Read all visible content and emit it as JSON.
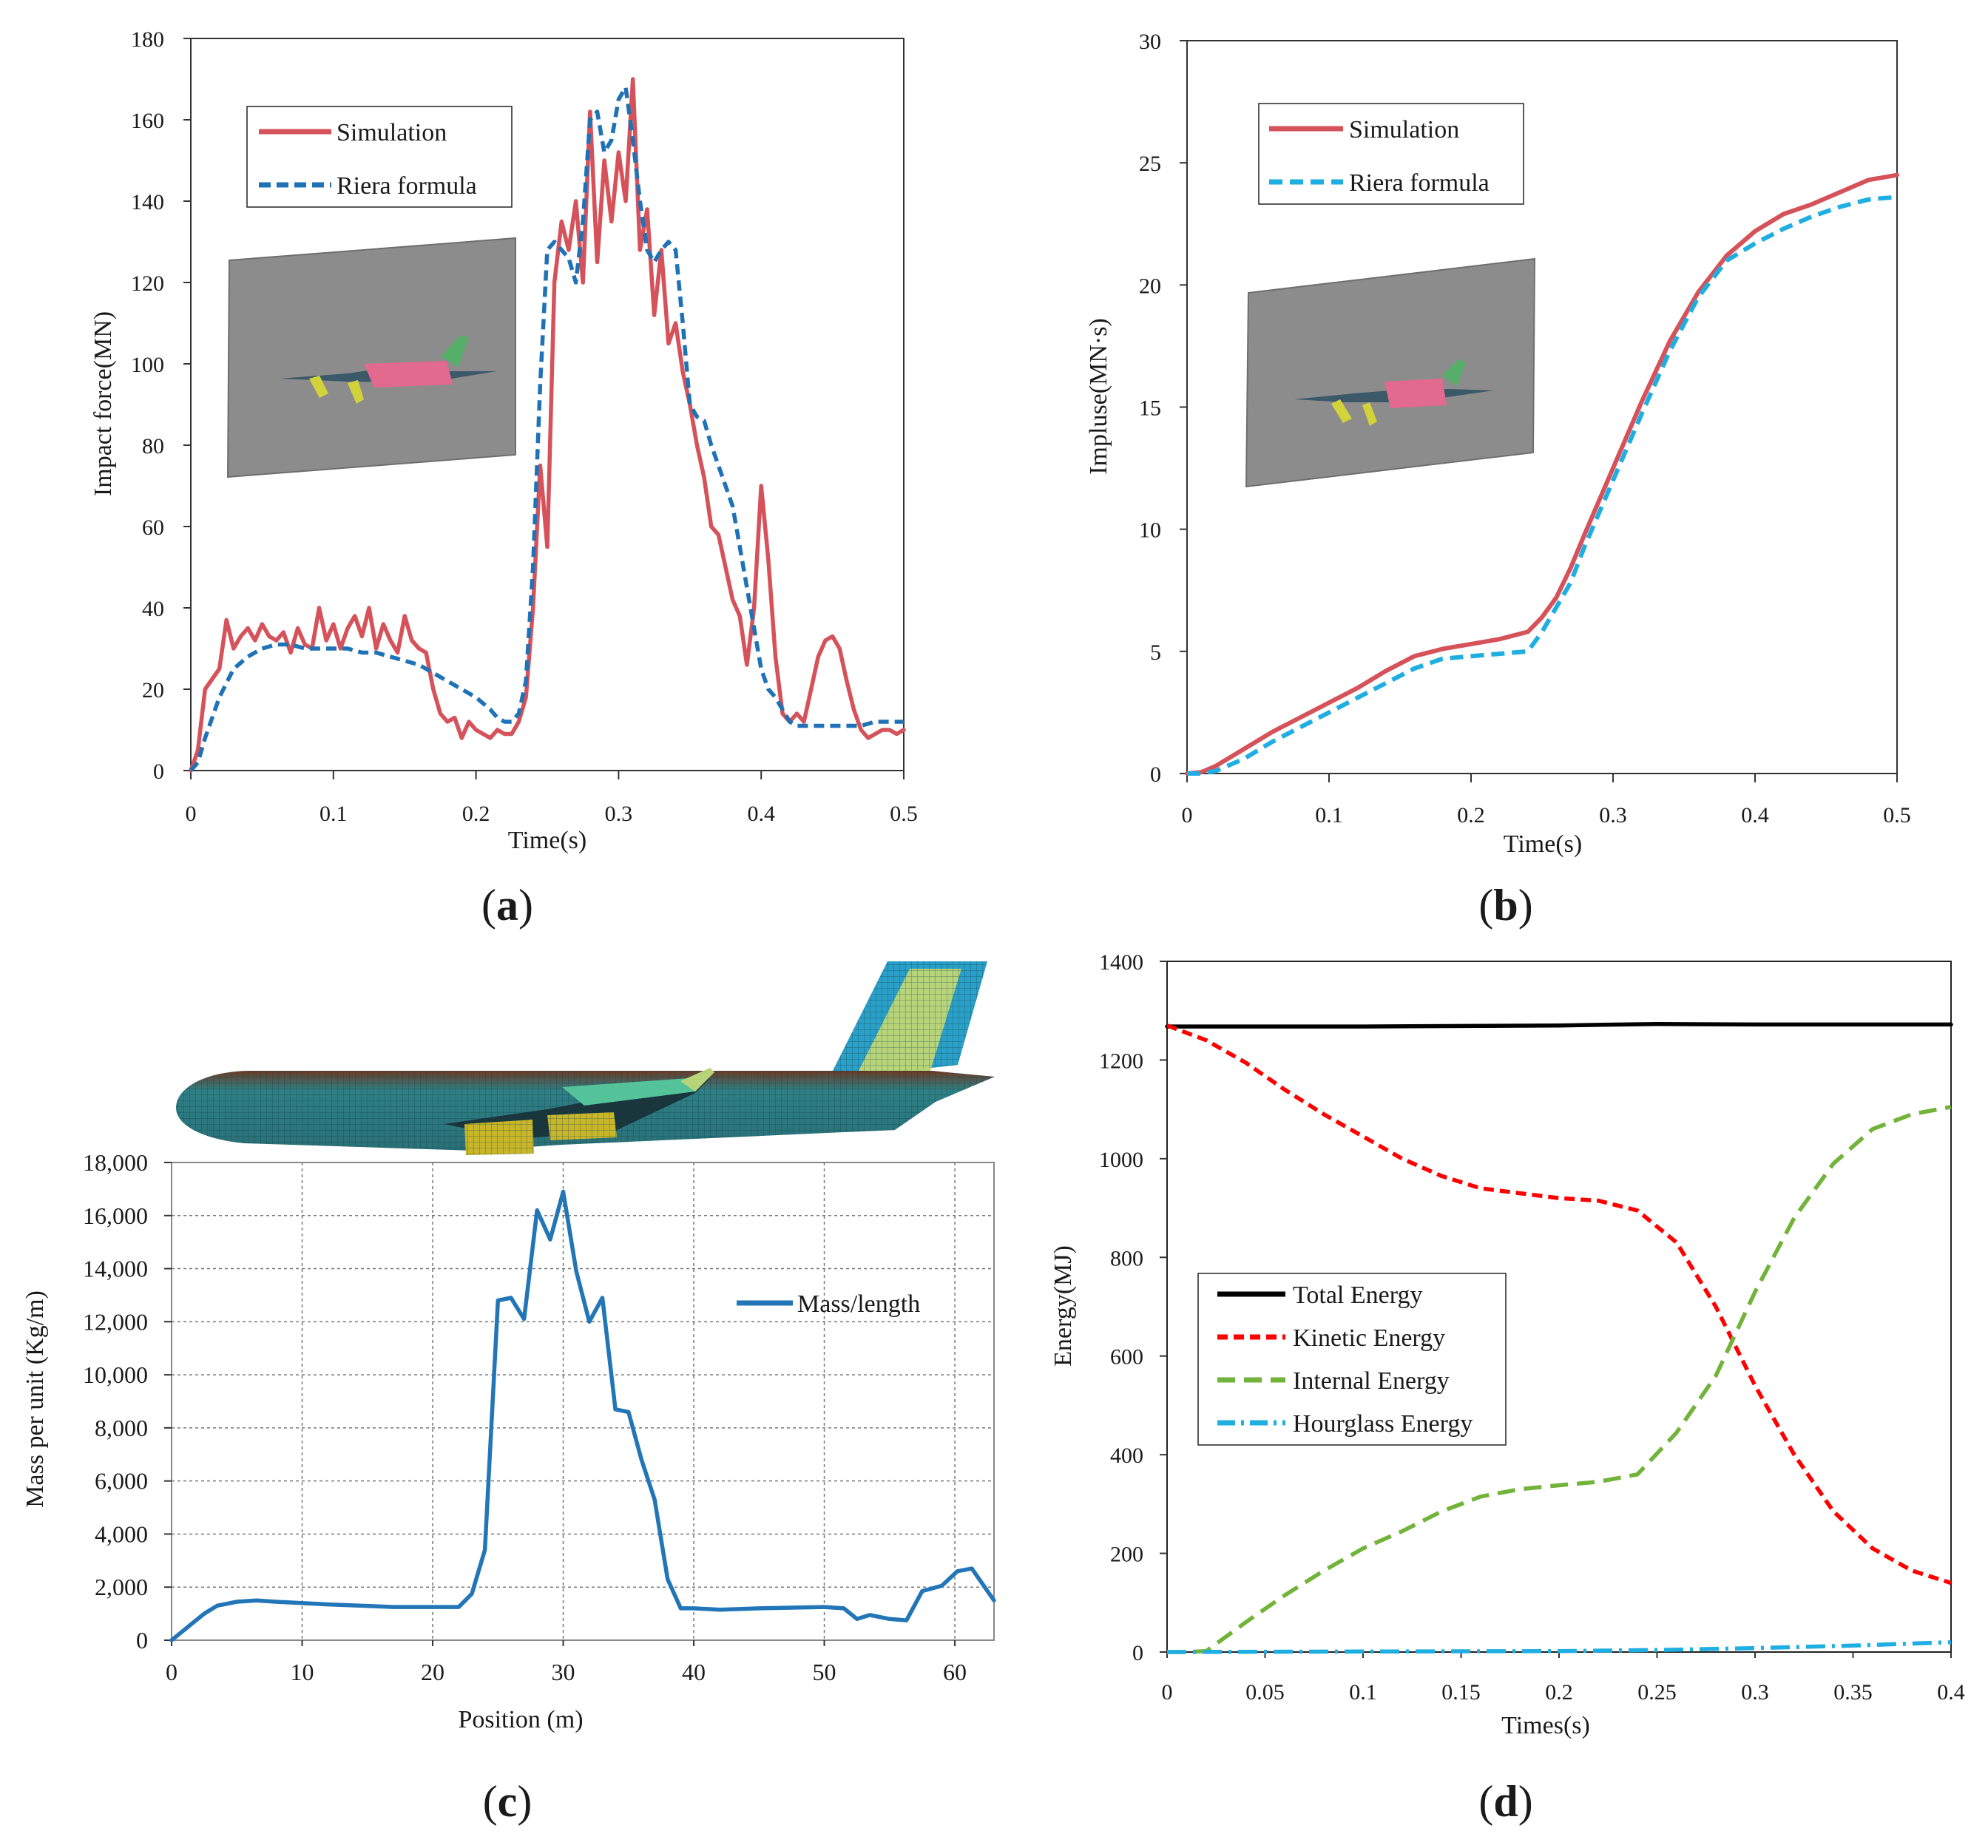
{
  "panels": [
    {
      "label_prefix": "(",
      "label": "a",
      "label_suffix": ")"
    },
    {
      "label_prefix": "(",
      "label": "b",
      "label_suffix": ")"
    },
    {
      "label_prefix": "(",
      "label": "c",
      "label_suffix": ")"
    },
    {
      "label_prefix": "(",
      "label": "d",
      "label_suffix": ")"
    }
  ],
  "chart_data": [
    {
      "type": "line",
      "ylabel": "Impact force(MN)",
      "xlabel": "Time(s)",
      "xlim": [
        0,
        0.5
      ],
      "ylim": [
        0,
        180
      ],
      "xticks": [
        0,
        0.1,
        0.2,
        0.3,
        0.4,
        0.5
      ],
      "xtick_labels": [
        "0",
        "0.1",
        "0.2",
        "0.3",
        "0.4",
        "0.5"
      ],
      "yticks": [
        0,
        20,
        40,
        60,
        80,
        100,
        120,
        140,
        160,
        180
      ],
      "ytick_labels": [
        "0",
        "20",
        "40",
        "60",
        "80",
        "100",
        "120",
        "140",
        "160",
        "180"
      ],
      "legend": [
        "Simulation",
        "Riera formula"
      ],
      "legend_position": "top-left",
      "series": [
        {
          "name": "Simulation",
          "color": "#d6525a",
          "style": "solid",
          "x": [
            0,
            0.005,
            0.01,
            0.02,
            0.025,
            0.03,
            0.035,
            0.04,
            0.045,
            0.05,
            0.055,
            0.06,
            0.065,
            0.07,
            0.075,
            0.08,
            0.085,
            0.09,
            0.095,
            0.1,
            0.105,
            0.11,
            0.115,
            0.12,
            0.125,
            0.13,
            0.135,
            0.14,
            0.145,
            0.15,
            0.155,
            0.16,
            0.165,
            0.17,
            0.175,
            0.18,
            0.185,
            0.19,
            0.195,
            0.2,
            0.205,
            0.21,
            0.215,
            0.22,
            0.225,
            0.23,
            0.235,
            0.24,
            0.245,
            0.25,
            0.255,
            0.26,
            0.265,
            0.27,
            0.275,
            0.28,
            0.285,
            0.29,
            0.295,
            0.3,
            0.305,
            0.31,
            0.315,
            0.32,
            0.325,
            0.33,
            0.335,
            0.34,
            0.345,
            0.35,
            0.355,
            0.36,
            0.365,
            0.37,
            0.375,
            0.38,
            0.385,
            0.39,
            0.395,
            0.4,
            0.405,
            0.41,
            0.415,
            0.42,
            0.425,
            0.43,
            0.435,
            0.44,
            0.445,
            0.45,
            0.455,
            0.46,
            0.465,
            0.47,
            0.475,
            0.48,
            0.485,
            0.49,
            0.495,
            0.5
          ],
          "values": [
            0,
            5,
            20,
            25,
            37,
            30,
            33,
            35,
            32,
            36,
            33,
            32,
            34,
            29,
            35,
            31,
            30,
            40,
            32,
            36,
            30,
            35,
            38,
            33,
            40,
            30,
            36,
            32,
            29,
            38,
            32,
            30,
            29,
            20,
            14,
            12,
            13,
            8,
            12,
            10,
            9,
            8,
            10,
            9,
            9,
            12,
            18,
            40,
            75,
            55,
            120,
            135,
            128,
            140,
            120,
            162,
            125,
            150,
            135,
            152,
            140,
            170,
            128,
            138,
            112,
            128,
            105,
            110,
            98,
            90,
            80,
            72,
            60,
            58,
            50,
            42,
            38,
            26,
            40,
            70,
            52,
            28,
            14,
            12,
            14,
            12,
            20,
            28,
            32,
            33,
            30,
            22,
            15,
            10,
            8,
            9,
            10,
            10,
            9,
            10
          ]
        },
        {
          "name": "Riera formula",
          "color": "#1f72b6",
          "style": "dashed",
          "x": [
            0,
            0.005,
            0.01,
            0.02,
            0.03,
            0.04,
            0.05,
            0.06,
            0.07,
            0.08,
            0.09,
            0.1,
            0.11,
            0.12,
            0.13,
            0.14,
            0.15,
            0.16,
            0.17,
            0.18,
            0.19,
            0.2,
            0.21,
            0.215,
            0.22,
            0.225,
            0.23,
            0.235,
            0.24,
            0.245,
            0.25,
            0.255,
            0.26,
            0.265,
            0.27,
            0.275,
            0.28,
            0.285,
            0.29,
            0.295,
            0.3,
            0.305,
            0.31,
            0.315,
            0.32,
            0.325,
            0.33,
            0.335,
            0.34,
            0.345,
            0.35,
            0.355,
            0.36,
            0.365,
            0.37,
            0.375,
            0.38,
            0.385,
            0.39,
            0.395,
            0.4,
            0.405,
            0.41,
            0.415,
            0.42,
            0.425,
            0.43,
            0.44,
            0.45,
            0.46,
            0.47,
            0.48,
            0.49,
            0.5
          ],
          "values": [
            0,
            2,
            8,
            18,
            25,
            28,
            30,
            31,
            31,
            30,
            30,
            30,
            30,
            29,
            29,
            28,
            27,
            26,
            24,
            22,
            20,
            18,
            15,
            13,
            12,
            12,
            14,
            22,
            50,
            95,
            128,
            130,
            128,
            126,
            120,
            135,
            160,
            162,
            152,
            155,
            165,
            168,
            155,
            140,
            128,
            125,
            128,
            130,
            128,
            110,
            90,
            87,
            86,
            80,
            75,
            70,
            65,
            55,
            45,
            35,
            25,
            20,
            18,
            15,
            12,
            11,
            11,
            11,
            11,
            11,
            11,
            12,
            12,
            12
          ]
        }
      ]
    },
    {
      "type": "line",
      "ylabel": "Impluse(MN·s)",
      "xlabel": "Time(s)",
      "xlim": [
        0,
        0.5
      ],
      "ylim": [
        0,
        30
      ],
      "xticks": [
        0,
        0.1,
        0.2,
        0.3,
        0.4,
        0.5
      ],
      "xtick_labels": [
        "0",
        "0.1",
        "0.2",
        "0.3",
        "0.4",
        "0.5"
      ],
      "yticks": [
        0,
        5,
        10,
        15,
        20,
        25,
        30
      ],
      "ytick_labels": [
        "0",
        "5",
        "10",
        "15",
        "20",
        "25",
        "30"
      ],
      "legend": [
        "Simulation",
        "Riera formula"
      ],
      "legend_position": "top-left",
      "series": [
        {
          "name": "Simulation",
          "color": "#d6525a",
          "style": "solid",
          "x": [
            0,
            0.01,
            0.02,
            0.04,
            0.06,
            0.08,
            0.1,
            0.12,
            0.14,
            0.16,
            0.18,
            0.2,
            0.22,
            0.24,
            0.25,
            0.26,
            0.27,
            0.28,
            0.3,
            0.32,
            0.34,
            0.36,
            0.38,
            0.4,
            0.42,
            0.44,
            0.46,
            0.48,
            0.5
          ],
          "values": [
            0,
            0.05,
            0.3,
            1.0,
            1.7,
            2.3,
            2.9,
            3.5,
            4.2,
            4.8,
            5.1,
            5.3,
            5.5,
            5.8,
            6.4,
            7.2,
            8.4,
            9.8,
            12.5,
            15.2,
            17.7,
            19.7,
            21.2,
            22.2,
            22.9,
            23.3,
            23.8,
            24.3,
            24.5
          ]
        },
        {
          "name": "Riera formula",
          "color": "#1eaee2",
          "style": "dashed",
          "x": [
            0,
            0.01,
            0.02,
            0.04,
            0.06,
            0.08,
            0.1,
            0.12,
            0.14,
            0.16,
            0.18,
            0.2,
            0.22,
            0.24,
            0.25,
            0.26,
            0.27,
            0.28,
            0.3,
            0.32,
            0.34,
            0.36,
            0.38,
            0.4,
            0.42,
            0.44,
            0.46,
            0.48,
            0.5
          ],
          "values": [
            0,
            0,
            0.1,
            0.6,
            1.3,
            1.9,
            2.5,
            3.1,
            3.7,
            4.3,
            4.7,
            4.8,
            4.9,
            5.0,
            5.8,
            6.8,
            7.8,
            9.3,
            12.0,
            14.7,
            17.3,
            19.5,
            21.0,
            21.7,
            22.3,
            22.8,
            23.2,
            23.5,
            23.6
          ]
        }
      ]
    },
    {
      "type": "line",
      "ylabel": "Mass per unit (Kg/m)",
      "xlabel": "Position (m)",
      "xlim": [
        0,
        63
      ],
      "ylim": [
        0,
        18000
      ],
      "grid": true,
      "xticks": [
        0,
        10,
        20,
        30,
        40,
        50,
        60
      ],
      "xtick_labels": [
        "0",
        "10",
        "20",
        "30",
        "40",
        "50",
        "60"
      ],
      "yticks": [
        0,
        2000,
        4000,
        6000,
        8000,
        10000,
        12000,
        14000,
        16000,
        18000
      ],
      "ytick_labels": [
        "0",
        "2,000",
        "4,000",
        "6,000",
        "8,000",
        "10,000",
        "12,000",
        "14,000",
        "16,000",
        "18,000"
      ],
      "legend": [
        "Mass/length"
      ],
      "legend_position": "top-right",
      "series": [
        {
          "name": "Mass/length",
          "color": "#2276b7",
          "style": "solid",
          "x": [
            0,
            1,
            2.5,
            3.5,
            5,
            6.5,
            8,
            12,
            17,
            22,
            23,
            24,
            25,
            26,
            27,
            28,
            29,
            30,
            31,
            32,
            33,
            34,
            35,
            36,
            37,
            38,
            39,
            40,
            42,
            45,
            50,
            51.5,
            52.5,
            53.5,
            55,
            56.3,
            57.5,
            59,
            60.2,
            61.3,
            63
          ],
          "values": [
            0,
            400,
            1000,
            1300,
            1450,
            1500,
            1450,
            1350,
            1250,
            1250,
            1750,
            3400,
            12800,
            12900,
            12100,
            16200,
            15100,
            16900,
            13900,
            12000,
            12900,
            8700,
            8600,
            6800,
            5300,
            2300,
            1200,
            1200,
            1150,
            1200,
            1250,
            1200,
            800,
            950,
            800,
            750,
            1850,
            2050,
            2600,
            2700,
            1500
          ]
        }
      ]
    },
    {
      "type": "line",
      "ylabel": "Energy(MJ)",
      "xlabel": "Times(s)",
      "xlim": [
        0,
        0.4
      ],
      "ylim": [
        0,
        1400
      ],
      "xticks": [
        0,
        0.05,
        0.1,
        0.15,
        0.2,
        0.25,
        0.3,
        0.35,
        0.4
      ],
      "xtick_labels": [
        "0",
        "0.05",
        "0.1",
        "0.15",
        "0.2",
        "0.25",
        "0.3",
        "0.35",
        "0.4"
      ],
      "yticks": [
        0,
        200,
        400,
        600,
        800,
        1000,
        1200,
        1400
      ],
      "ytick_labels": [
        "0",
        "200",
        "400",
        "600",
        "800",
        "1000",
        "1200",
        "1400"
      ],
      "legend": [
        "Total Energy",
        "Kinetic Energy",
        "Internal Energy",
        "Hourglass Energy"
      ],
      "legend_position": "center-left",
      "series": [
        {
          "name": "Total Energy",
          "color": "#000000",
          "style": "solid",
          "x": [
            0,
            0.1,
            0.2,
            0.25,
            0.3,
            0.4
          ],
          "values": [
            1268,
            1268,
            1270,
            1273,
            1272,
            1272
          ]
        },
        {
          "name": "Kinetic Energy",
          "color": "#ff0000",
          "style": "dashed",
          "x": [
            0,
            0.02,
            0.04,
            0.06,
            0.08,
            0.1,
            0.12,
            0.14,
            0.16,
            0.18,
            0.2,
            0.22,
            0.24,
            0.26,
            0.28,
            0.3,
            0.32,
            0.34,
            0.36,
            0.38,
            0.4
          ],
          "values": [
            1270,
            1240,
            1195,
            1140,
            1090,
            1045,
            1000,
            965,
            940,
            930,
            920,
            915,
            895,
            830,
            700,
            540,
            400,
            285,
            210,
            165,
            140
          ]
        },
        {
          "name": "Internal Energy",
          "color": "#72b33a",
          "style": "dashed",
          "x": [
            0,
            0.01,
            0.02,
            0.04,
            0.06,
            0.08,
            0.1,
            0.12,
            0.14,
            0.16,
            0.18,
            0.2,
            0.22,
            0.24,
            0.26,
            0.28,
            0.3,
            0.32,
            0.34,
            0.36,
            0.38,
            0.4
          ],
          "values": [
            0,
            0,
            2,
            60,
            115,
            165,
            210,
            245,
            285,
            315,
            330,
            338,
            345,
            360,
            445,
            560,
            730,
            880,
            990,
            1060,
            1090,
            1105
          ]
        },
        {
          "name": "Hourglass Energy",
          "color": "#1eaee2",
          "style": "dashdot",
          "x": [
            0,
            0.1,
            0.2,
            0.25,
            0.3,
            0.35,
            0.4
          ],
          "values": [
            0,
            1,
            2,
            4,
            8,
            13,
            20
          ]
        }
      ]
    }
  ]
}
